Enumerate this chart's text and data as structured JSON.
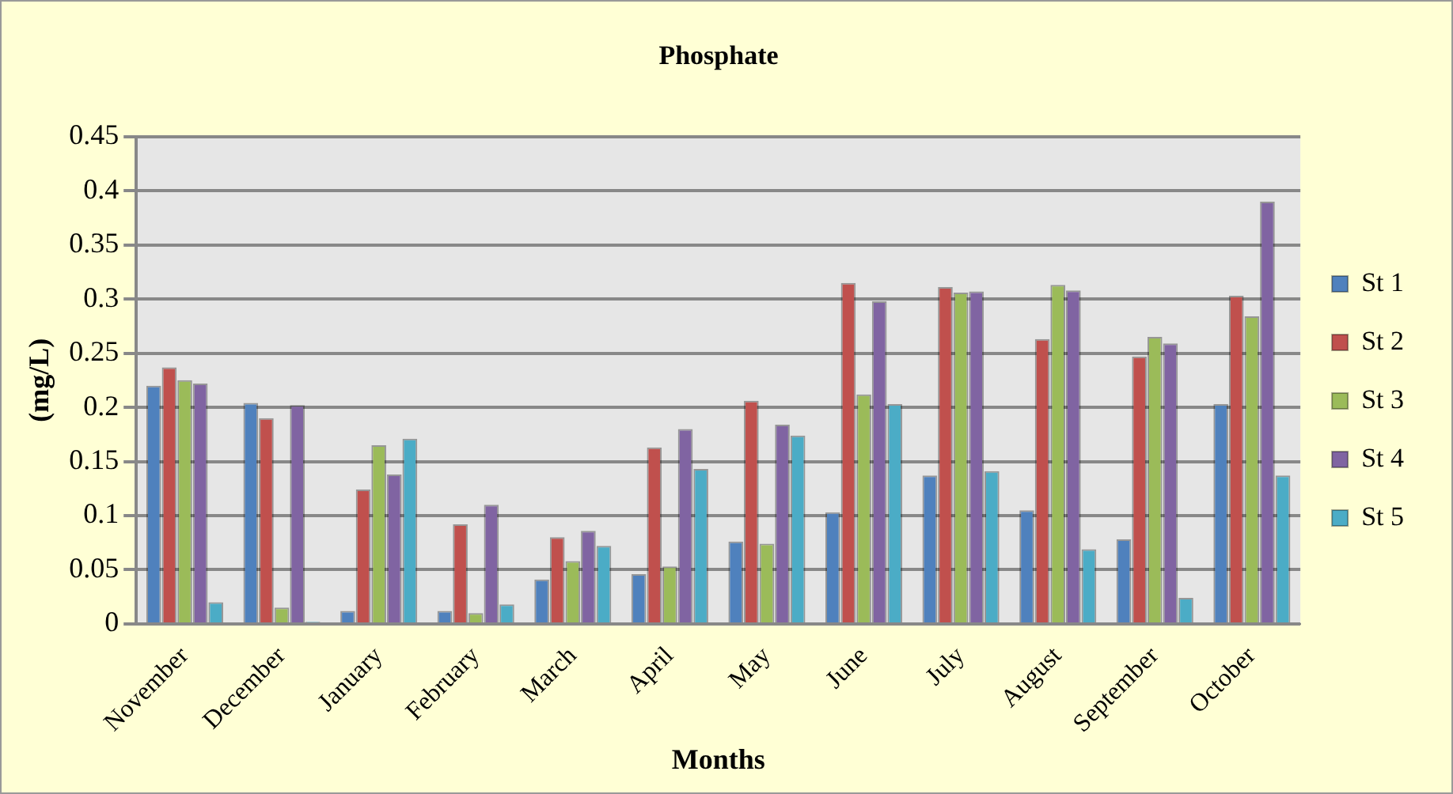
{
  "chart_data": {
    "type": "bar",
    "title": "Phosphate",
    "xlabel": "Months",
    "ylabel": "(mg/L)",
    "categories": [
      "November",
      "December",
      "January",
      "February",
      "March",
      "April",
      "May",
      "June",
      "July",
      "August",
      "September",
      "October"
    ],
    "series": [
      {
        "name": "St 1",
        "color": "#4f81bd",
        "values": [
          0.22,
          0.204,
          0.012,
          0.012,
          0.041,
          0.046,
          0.076,
          0.103,
          0.137,
          0.105,
          0.078,
          0.203
        ]
      },
      {
        "name": "St 2",
        "color": "#c0504d",
        "values": [
          0.237,
          0.19,
          0.124,
          0.092,
          0.08,
          0.163,
          0.206,
          0.315,
          0.311,
          0.263,
          0.247,
          0.303
        ]
      },
      {
        "name": "St 3",
        "color": "#9bbb59",
        "values": [
          0.225,
          0.015,
          0.165,
          0.01,
          0.058,
          0.053,
          0.074,
          0.212,
          0.306,
          0.313,
          0.265,
          0.284
        ]
      },
      {
        "name": "St 4",
        "color": "#8064a2",
        "values": [
          0.222,
          0.202,
          0.138,
          0.11,
          0.086,
          0.18,
          0.184,
          0.298,
          0.307,
          0.308,
          0.259,
          0.39
        ]
      },
      {
        "name": "St 5",
        "color": "#4bacc6",
        "values": [
          0.02,
          0.002,
          0.171,
          0.018,
          0.072,
          0.143,
          0.174,
          0.203,
          0.141,
          0.069,
          0.024,
          0.137
        ]
      }
    ],
    "ylim": [
      0,
      0.45
    ],
    "yticks": [
      0,
      0.05,
      0.1,
      0.15,
      0.2,
      0.25,
      0.3,
      0.35,
      0.4,
      0.45
    ],
    "grid": "y",
    "legend": "right"
  }
}
